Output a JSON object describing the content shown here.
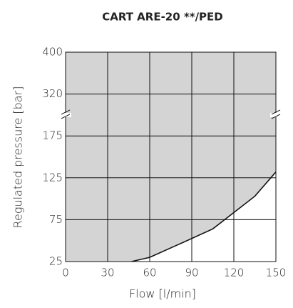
{
  "chart_data": {
    "type": "area",
    "title": "CART  ARE-20 **/PED",
    "xlabel": "Flow [l/min]",
    "ylabel": "Regulated pressure [bar]",
    "xlim": [
      0,
      150
    ],
    "xticks": [
      0,
      30,
      60,
      90,
      120,
      150
    ],
    "ylim": [
      25,
      400
    ],
    "yticks": [
      25,
      75,
      125,
      175,
      320,
      400
    ],
    "axis_break": [
      175,
      320
    ],
    "grid": true,
    "series": [
      {
        "x": [
          47,
          60,
          80,
          105,
          135,
          150
        ],
        "values": [
          25,
          30,
          45,
          64,
          103,
          132
        ],
        "color": "#d4d4d4",
        "line_color": "#111111"
      }
    ]
  }
}
